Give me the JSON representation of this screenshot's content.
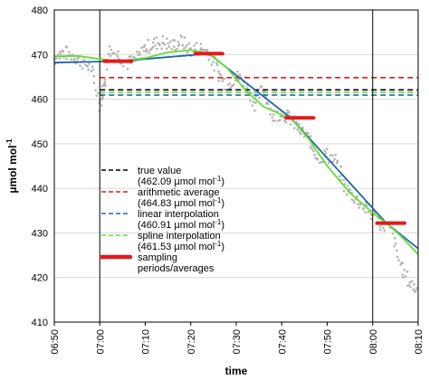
{
  "chart_data": {
    "type": "line",
    "xlabel": "time",
    "ylabel": "µmol mol",
    "ylabel_sup": "-1",
    "ylim": [
      410,
      480
    ],
    "yticks": [
      "410",
      "420",
      "430",
      "440",
      "450",
      "460",
      "470",
      "480"
    ],
    "xlim_minutes": [
      0,
      80
    ],
    "xticks": [
      "06:50",
      "07:00",
      "07:10",
      "07:20",
      "07:30",
      "07:40",
      "07:50",
      "08:00",
      "08:10"
    ],
    "grid": "horizontal",
    "vertical_markers": [
      "07:00",
      "08:00"
    ],
    "reference_lines": [
      {
        "name": "true value",
        "value": 462.09,
        "color": "#000000",
        "x_start": "07:00",
        "x_end": "08:00"
      },
      {
        "name": "arithmetic average",
        "value": 464.83,
        "color": "#e41a1c",
        "x_start": "07:00",
        "x_end": "08:00"
      },
      {
        "name": "linear interpolation",
        "value": 460.91,
        "color": "#2166ac",
        "x_start": "07:00",
        "x_end": "08:00"
      },
      {
        "name": "spline interpolation",
        "value": 461.53,
        "color": "#66dd33",
        "x_start": "07:00",
        "x_end": "08:00"
      }
    ],
    "series": [
      {
        "name": "linear interpolation",
        "color": "#2166ac",
        "x": [
          "06:50",
          "07:04",
          "07:24",
          "07:42",
          "08:03",
          "08:10"
        ],
        "y": [
          468.2,
          468.5,
          470.2,
          455.8,
          432.2,
          426.5
        ]
      },
      {
        "name": "spline interpolation",
        "color": "#66dd33",
        "x": [
          "06:50",
          "06:55",
          "07:00",
          "07:04",
          "07:10",
          "07:15",
          "07:20",
          "07:24",
          "07:28",
          "07:32",
          "07:36",
          "07:40",
          "07:42",
          "07:46",
          "07:50",
          "07:55",
          "08:00",
          "08:03",
          "08:06",
          "08:10"
        ],
        "y": [
          469.6,
          469.7,
          469.0,
          468.5,
          469.2,
          470.5,
          471.0,
          470.2,
          467.0,
          462.0,
          458.3,
          456.5,
          455.8,
          451.0,
          445.0,
          439.0,
          434.5,
          432.2,
          429.5,
          425.2
        ]
      },
      {
        "name": "sampling periods/averages",
        "color": "#e41a1c",
        "segments": [
          {
            "x": [
              "07:01",
              "07:07"
            ],
            "y": 468.5
          },
          {
            "x": [
              "07:21",
              "07:27"
            ],
            "y": 470.2
          },
          {
            "x": [
              "07:41",
              "07:47"
            ],
            "y": 455.8
          },
          {
            "x": [
              "08:01",
              "08:07"
            ],
            "y": 432.2
          }
        ]
      },
      {
        "name": "measurements",
        "color": "#b3b3b3",
        "x": [
          "06:50",
          "06:52",
          "06:54",
          "06:56",
          "06:58",
          "07:00",
          "07:01",
          "07:02",
          "07:04",
          "07:06",
          "07:08",
          "07:10",
          "07:12",
          "07:14",
          "07:16",
          "07:18",
          "07:20",
          "07:22",
          "07:24",
          "07:26",
          "07:28",
          "07:30",
          "07:32",
          "07:34",
          "07:36",
          "07:38",
          "07:40",
          "07:42",
          "07:44",
          "07:46",
          "07:48",
          "07:50",
          "07:52",
          "07:54",
          "07:56",
          "07:58",
          "08:00",
          "08:02",
          "08:04",
          "08:06",
          "08:08",
          "08:10"
        ],
        "y": [
          469.0,
          470.5,
          469.8,
          468.5,
          467.0,
          459.0,
          463.0,
          471.0,
          470.0,
          468.0,
          468.8,
          471.5,
          472.5,
          472.8,
          472.0,
          473.0,
          471.0,
          471.5,
          470.5,
          466.0,
          463.0,
          465.0,
          464.0,
          459.0,
          462.5,
          456.0,
          457.0,
          455.5,
          453.0,
          451.0,
          447.0,
          447.5,
          446.0,
          440.0,
          438.0,
          436.0,
          434.0,
          432.0,
          431.0,
          423.0,
          419.0,
          417.0
        ]
      }
    ],
    "legend": {
      "placement": "bottom-center",
      "entries": [
        {
          "label": "true value",
          "sub": "(462.09 µmol mol",
          "sup": "-1",
          "close": ")",
          "color": "#000000",
          "style": "dashed"
        },
        {
          "label": "arithmetic average",
          "sub": "(464.83 µmol mol",
          "sup": "-1",
          "close": ")",
          "color": "#e41a1c",
          "style": "dashed"
        },
        {
          "label": "linear interpolation",
          "sub": "(460.91 µmol mol",
          "sup": "-1",
          "close": ")",
          "color": "#2166ac",
          "style": "dashed"
        },
        {
          "label": "spline interpolation",
          "sub": "(461.53  µmol mol",
          "sup": "-1",
          "close": ")",
          "color": "#66dd33",
          "style": "dashed"
        },
        {
          "label": "sampling",
          "sub": "periods/averages",
          "sup": "",
          "close": "",
          "color": "#e41a1c",
          "style": "thick"
        }
      ]
    }
  }
}
